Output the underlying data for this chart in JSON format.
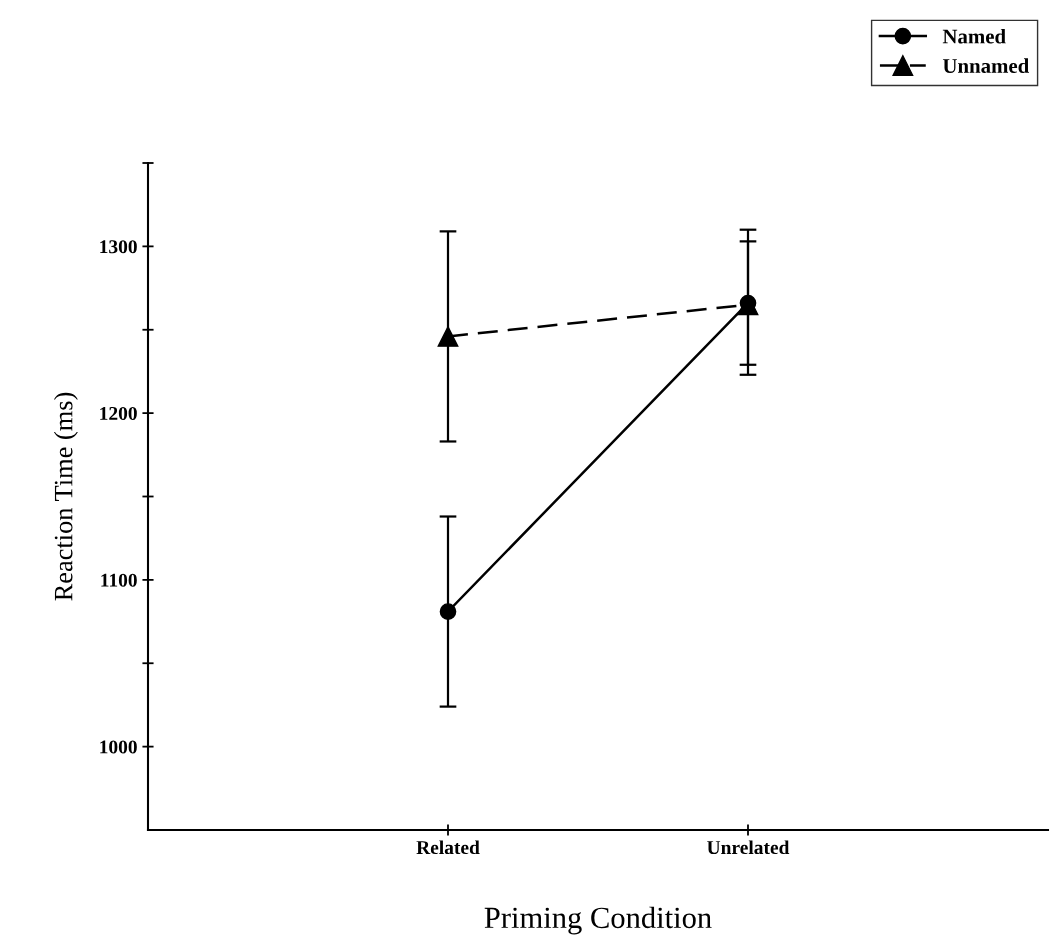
{
  "chart_data": {
    "type": "line",
    "xlabel": "Priming Condition",
    "ylabel": "Reaction Time (ms)",
    "categories": [
      "Related",
      "Unrelated"
    ],
    "series": [
      {
        "name": "Named",
        "color": "#000000",
        "values": [
          1081,
          1266
        ],
        "errors": [
          [
            1024,
            1138
          ],
          [
            1229,
            1303
          ]
        ],
        "marker": "circle",
        "line_style": "solid"
      },
      {
        "name": "Unnamed",
        "color": "#000000",
        "values": [
          1246,
          1265
        ],
        "errors": [
          [
            1183,
            1309
          ],
          [
            1223,
            1310
          ]
        ],
        "marker": "triangle",
        "line_style": "dashed"
      }
    ],
    "ylim": [
      950,
      1350
    ],
    "yticks": [
      1000,
      {
        "value": 1050,
        "label": null
      },
      1100,
      {
        "value": 1150,
        "label": null
      },
      1200,
      {
        "value": 1250,
        "label": null
      },
      1300,
      {
        "value": 1350,
        "label": null
      }
    ],
    "grid": false,
    "legend": "top right"
  }
}
